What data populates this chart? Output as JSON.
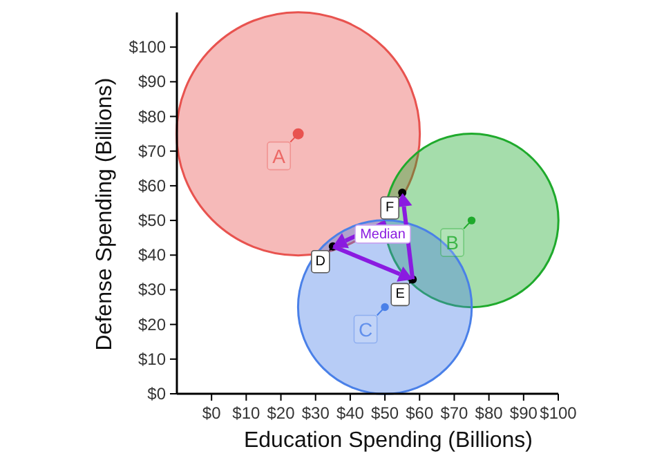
{
  "chart_data": {
    "type": "bubble",
    "xlabel": "Education Spending (Billions)",
    "ylabel": "Defense Spending (Billions)",
    "xlim": [
      -10,
      100
    ],
    "ylim": [
      0,
      110
    ],
    "xticks": [
      {
        "value": 0,
        "label": "$0"
      },
      {
        "value": 10,
        "label": "$10"
      },
      {
        "value": 20,
        "label": "$20"
      },
      {
        "value": 30,
        "label": "$30"
      },
      {
        "value": 40,
        "label": "$40"
      },
      {
        "value": 50,
        "label": "$50"
      },
      {
        "value": 60,
        "label": "$60"
      },
      {
        "value": 70,
        "label": "$70"
      },
      {
        "value": 80,
        "label": "$80"
      },
      {
        "value": 90,
        "label": "$90"
      },
      {
        "value": 100,
        "label": "$100"
      }
    ],
    "yticks": [
      {
        "value": 0,
        "label": "$0"
      },
      {
        "value": 10,
        "label": "$10"
      },
      {
        "value": 20,
        "label": "$20"
      },
      {
        "value": 30,
        "label": "$30"
      },
      {
        "value": 40,
        "label": "$40"
      },
      {
        "value": 50,
        "label": "$50"
      },
      {
        "value": 60,
        "label": "$60"
      },
      {
        "value": 70,
        "label": "$70"
      },
      {
        "value": 80,
        "label": "$80"
      },
      {
        "value": 90,
        "label": "$90"
      },
      {
        "value": 100,
        "label": "$100"
      }
    ],
    "series": [
      {
        "x": [
          25,
          75,
          50
        ],
        "values": [
          75,
          50,
          25
        ],
        "sizes": [
          1,
          0.51,
          0.51
        ],
        "colors": [
          "#e8534f",
          "#1faa2c",
          "#4a80e8"
        ],
        "value_labels": [
          "A",
          "B",
          "C"
        ]
      },
      {
        "type": "scatter",
        "color": "#000000",
        "x": [
          35,
          58,
          55
        ],
        "values": [
          42.5,
          33,
          58
        ],
        "value_labels": [
          "D",
          "E",
          "F"
        ]
      }
    ],
    "annotations": [
      "Median"
    ],
    "grid": false
  }
}
